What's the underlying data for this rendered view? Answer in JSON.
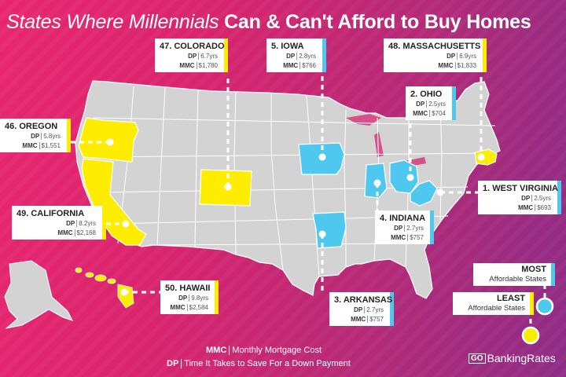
{
  "title": {
    "part1": "States Where Millennials ",
    "part2": "Can & Can't Afford to Buy Homes"
  },
  "colors": {
    "least": "#ffed00",
    "most": "#4fc8f0",
    "neutral": "#d3d3d3"
  },
  "states": {
    "colorado": {
      "name": "47. COLORADO",
      "dp_label": "DP",
      "dp": "6.7yrs",
      "mmc_label": "MMC",
      "mmc": "$1,780",
      "category": "least"
    },
    "iowa": {
      "name": "5. IOWA",
      "dp_label": "DP",
      "dp": "2.8yrs",
      "mmc_label": "MMC",
      "mmc": "$766",
      "category": "most"
    },
    "massachusetts": {
      "name": "48. MASSACHUSETTS",
      "dp_label": "DP",
      "dp": "6.9yrs",
      "mmc_label": "MMC",
      "mmc": "$1,833",
      "category": "least"
    },
    "ohio": {
      "name": "2. OHIO",
      "dp_label": "DP",
      "dp": "2.5yrs",
      "mmc_label": "MMC",
      "mmc": "$704",
      "category": "most"
    },
    "oregon": {
      "name": "46. OREGON",
      "dp_label": "DP",
      "dp": "5.8yrs",
      "mmc_label": "MMC",
      "mmc": "$1,551",
      "category": "least"
    },
    "west_virginia": {
      "name": "1. WEST VIRGINIA",
      "dp_label": "DP",
      "dp": "2.5yrs",
      "mmc_label": "MMC",
      "mmc": "$693",
      "category": "most"
    },
    "indiana": {
      "name": "4. INDIANA",
      "dp_label": "DP",
      "dp": "2.7yrs",
      "mmc_label": "MMC",
      "mmc": "$757",
      "category": "most"
    },
    "california": {
      "name": "49. CALIFORNIA",
      "dp_label": "DP",
      "dp": "8.2yrs",
      "mmc_label": "MMC",
      "mmc": "$2,168",
      "category": "least"
    },
    "hawaii": {
      "name": "50. HAWAII",
      "dp_label": "DP",
      "dp": "9.8yrs",
      "mmc_label": "MMC",
      "mmc": "$2,584",
      "category": "least"
    },
    "arkansas": {
      "name": "3. ARKANSAS",
      "dp_label": "DP",
      "dp": "2.7yrs",
      "mmc_label": "MMC",
      "mmc": "$757",
      "category": "most"
    }
  },
  "legend": {
    "most": {
      "line1": "MOST",
      "line2": "Affordable States"
    },
    "least": {
      "line1": "LEAST",
      "line2": "Affordable States"
    }
  },
  "footer": {
    "mmc_key": "MMC",
    "mmc_desc": "Monthly Mortgage Cost",
    "dp_key": "DP",
    "dp_desc": "Time It Takes to Save For a Down Payment"
  },
  "brand": {
    "go": "GO",
    "name": "BankingRates"
  }
}
